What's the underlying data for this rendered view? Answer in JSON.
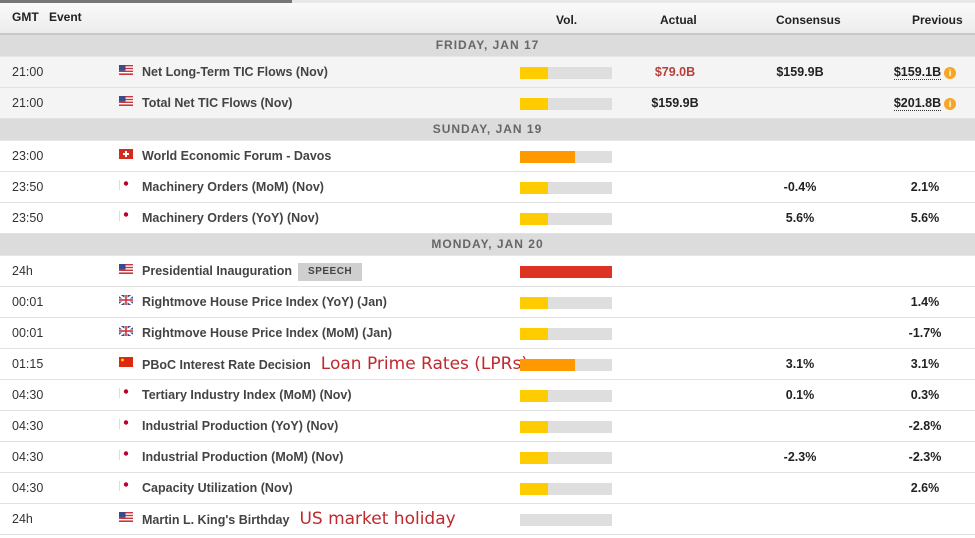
{
  "header": {
    "gmt": "GMT",
    "event": "Event",
    "vol": "Vol.",
    "actual": "Actual",
    "consensus": "Consensus",
    "previous": "Previous"
  },
  "colors": {
    "low": "#ffcc00",
    "medium": "#ff9900",
    "high": "#dd3322",
    "track": "#dedede",
    "negative_actual": "#b5403a",
    "note": "#c0282d"
  },
  "days": [
    {
      "label": "FRIDAY, JAN 17",
      "events": [
        {
          "time": "21:00",
          "flag": "us",
          "name": "Net Long-Term TIC Flows (Nov)",
          "vol": "low",
          "actual": "$79.0B",
          "actual_neg": true,
          "consensus": "$159.9B",
          "previous": "$159.1B",
          "revised": true
        },
        {
          "time": "21:00",
          "flag": "us",
          "name": "Total Net TIC Flows (Nov)",
          "vol": "low",
          "actual": "$159.9B",
          "consensus": "",
          "previous": "$201.8B",
          "revised": true
        }
      ]
    },
    {
      "label": "SUNDAY, JAN 19",
      "events": [
        {
          "time": "23:00",
          "flag": "ch",
          "name": "World Economic Forum - Davos",
          "vol": "medium",
          "actual": "",
          "consensus": "",
          "previous": ""
        },
        {
          "time": "23:50",
          "flag": "jp",
          "name": "Machinery Orders (MoM) (Nov)",
          "vol": "low",
          "actual": "",
          "consensus": "-0.4%",
          "previous": "2.1%"
        },
        {
          "time": "23:50",
          "flag": "jp",
          "name": "Machinery Orders (YoY) (Nov)",
          "vol": "low",
          "actual": "",
          "consensus": "5.6%",
          "previous": "5.6%"
        }
      ]
    },
    {
      "label": "MONDAY, JAN 20",
      "events": [
        {
          "time": "24h",
          "flag": "us",
          "name": "Presidential Inauguration",
          "badge": "SPEECH",
          "vol": "high",
          "actual": "",
          "consensus": "",
          "previous": ""
        },
        {
          "time": "00:01",
          "flag": "gb",
          "name": "Rightmove House Price Index (YoY) (Jan)",
          "vol": "low",
          "actual": "",
          "consensus": "",
          "previous": "1.4%"
        },
        {
          "time": "00:01",
          "flag": "gb",
          "name": "Rightmove House Price Index (MoM) (Jan)",
          "vol": "low",
          "actual": "",
          "consensus": "",
          "previous": "-1.7%"
        },
        {
          "time": "01:15",
          "flag": "cn",
          "name": "PBoC Interest Rate Decision",
          "note": "Loan Prime Rates (LPRs)",
          "vol": "medium",
          "actual": "",
          "consensus": "3.1%",
          "previous": "3.1%"
        },
        {
          "time": "04:30",
          "flag": "jp",
          "name": "Tertiary Industry Index (MoM) (Nov)",
          "vol": "low",
          "actual": "",
          "consensus": "0.1%",
          "previous": "0.3%"
        },
        {
          "time": "04:30",
          "flag": "jp",
          "name": "Industrial Production (YoY) (Nov)",
          "vol": "low",
          "actual": "",
          "consensus": "",
          "previous": "-2.8%"
        },
        {
          "time": "04:30",
          "flag": "jp",
          "name": "Industrial Production (MoM) (Nov)",
          "vol": "low",
          "actual": "",
          "consensus": "-2.3%",
          "previous": "-2.3%"
        },
        {
          "time": "04:30",
          "flag": "jp",
          "name": "Capacity Utilization (Nov)",
          "vol": "low",
          "actual": "",
          "consensus": "",
          "previous": "2.6%"
        },
        {
          "time": "24h",
          "flag": "us",
          "name": "Martin L. King's Birthday",
          "note": "US market holiday",
          "vol": "none",
          "actual": "",
          "consensus": "",
          "previous": ""
        }
      ]
    }
  ]
}
